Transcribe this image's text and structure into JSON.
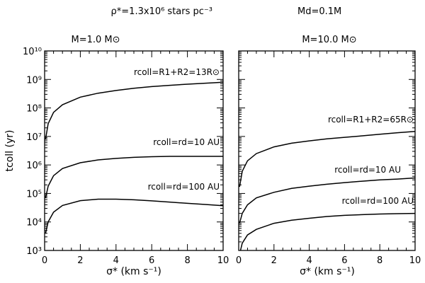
{
  "figure": {
    "header_left": "ρ*=1.3x10⁶ stars pc⁻³",
    "header_right": "Md=0.1M"
  },
  "chart_data": [
    {
      "type": "line",
      "title": "M=1.0 M⊙",
      "xlabel": "σ* (km s⁻¹)",
      "ylabel": "tcoll (yr)",
      "log_y": true,
      "xlim": [
        0,
        10
      ],
      "ylim": [
        1000,
        10000000000
      ],
      "x_ticks": [
        "0",
        "2",
        "4",
        "6",
        "8",
        "10"
      ],
      "y_ticks": [
        "10³",
        "10⁴",
        "10⁵",
        "10⁶",
        "10⁷",
        "10⁸",
        "10⁹",
        "10¹⁰"
      ],
      "series": [
        {
          "name": "rcoll=R1+R2=13R⊙",
          "x": [
            0.05,
            0.2,
            0.5,
            1,
            2,
            3,
            4,
            5,
            6,
            7,
            8,
            9,
            10
          ],
          "y": [
            8000000,
            28000000,
            70000000,
            130000000,
            240000000,
            330000000,
            410000000,
            490000000,
            560000000,
            620000000,
            680000000,
            740000000,
            800000000
          ]
        },
        {
          "name": "rcoll=rd=10 AU",
          "x": [
            0.05,
            0.2,
            0.5,
            1,
            2,
            3,
            4,
            5,
            6,
            7,
            8,
            9,
            10
          ],
          "y": [
            70000,
            180000,
            420000,
            750000,
            1200000,
            1500000,
            1700000,
            1850000,
            1950000,
            2000000,
            2000000,
            2000000,
            2000000
          ]
        },
        {
          "name": "rcoll=rd=100 AU",
          "x": [
            0.05,
            0.2,
            0.5,
            1,
            2,
            3,
            4,
            5,
            6,
            7,
            8,
            9,
            10
          ],
          "y": [
            4000,
            10000,
            22000,
            38000,
            56000,
            63000,
            63000,
            60000,
            55000,
            50000,
            45000,
            41000,
            37000
          ]
        }
      ]
    },
    {
      "type": "line",
      "title": "M=10.0 M⊙",
      "xlabel": "σ* (km s⁻¹)",
      "log_y": true,
      "xlim": [
        0,
        10
      ],
      "ylim": [
        1000,
        10000000000
      ],
      "x_ticks": [
        "0",
        "2",
        "4",
        "6",
        "8",
        "10"
      ],
      "series": [
        {
          "name": "rcoll=R1+R2=65R⊙",
          "x": [
            0.05,
            0.2,
            0.5,
            1,
            2,
            3,
            4,
            5,
            6,
            7,
            8,
            9,
            10
          ],
          "y": [
            170000,
            600000,
            1400000,
            2500000,
            4300000,
            5800000,
            7000000,
            8200000,
            9300000,
            10500000,
            12000000,
            13500000,
            15000000
          ]
        },
        {
          "name": "rcoll=rd=10 AU",
          "x": [
            0.05,
            0.2,
            0.5,
            1,
            2,
            3,
            4,
            5,
            6,
            7,
            8,
            9,
            10
          ],
          "y": [
            9000,
            20000,
            40000,
            70000,
            110000,
            150000,
            180000,
            210000,
            240000,
            270000,
            300000,
            320000,
            350000
          ]
        },
        {
          "name": "rcoll=rd=100 AU",
          "x": [
            0.1,
            0.2,
            0.5,
            1,
            2,
            3,
            4,
            5,
            6,
            7,
            8,
            9,
            10
          ],
          "y": [
            1000,
            1800,
            3500,
            5500,
            9000,
            11500,
            13500,
            15500,
            17000,
            18000,
            19000,
            19500,
            20000
          ]
        }
      ]
    }
  ]
}
